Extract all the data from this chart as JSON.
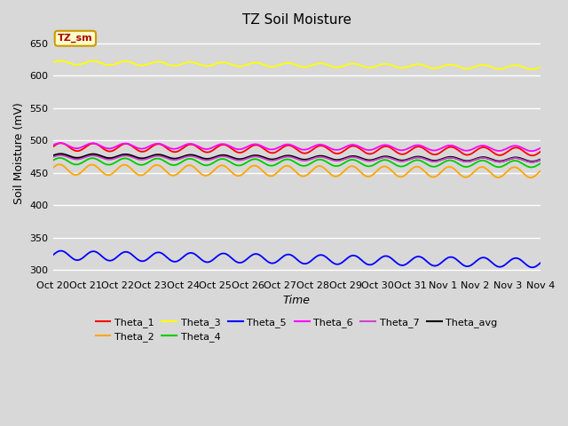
{
  "title": "TZ Soil Moisture",
  "xlabel": "Time",
  "ylabel": "Soil Moisture (mV)",
  "background_color": "#d8d8d8",
  "plot_bg_color": "#d8d8d8",
  "ylim": [
    290,
    670
  ],
  "yticks": [
    300,
    350,
    400,
    450,
    500,
    550,
    600,
    650
  ],
  "num_points": 1120,
  "num_days": 15,
  "series": {
    "Theta_1": {
      "color": "#ff0000",
      "base": 490,
      "amplitude": 6,
      "trend": -0.5,
      "phase": 0.0
    },
    "Theta_2": {
      "color": "#ffa500",
      "base": 455,
      "amplitude": 8,
      "trend": -0.3,
      "phase": 0.3
    },
    "Theta_3": {
      "color": "#ffff00",
      "base": 620,
      "amplitude": 3,
      "trend": -0.5,
      "phase": 0.1
    },
    "Theta_4": {
      "color": "#00cc00",
      "base": 468,
      "amplitude": 5,
      "trend": -0.3,
      "phase": 0.2
    },
    "Theta_5": {
      "color": "#0000ff",
      "base": 323,
      "amplitude": 7,
      "trend": -0.8,
      "phase": 0.0
    },
    "Theta_6": {
      "color": "#ff00ff",
      "base": 492,
      "amplitude": 4,
      "trend": -0.3,
      "phase": 0.15
    },
    "Theta_7": {
      "color": "#cc44cc",
      "base": 474,
      "amplitude": 3,
      "trend": -0.3,
      "phase": 0.1
    },
    "Theta_avg": {
      "color": "#000000",
      "base": 476,
      "amplitude": 3,
      "trend": -0.4,
      "phase": 0.05
    }
  },
  "xtick_labels": [
    "Oct 20",
    "Oct 21",
    "Oct 22",
    "Oct 23",
    "Oct 24",
    "Oct 25",
    "Oct 26",
    "Oct 27",
    "Oct 28",
    "Oct 29",
    "Oct 30",
    "Oct 31",
    "Nov 1",
    "Nov 2",
    "Nov 3",
    "Nov 4"
  ],
  "legend_box_color": "#ffffcc",
  "legend_box_edge": "#cc9900",
  "legend_text": "TZ_sm",
  "legend_text_color": "#aa0000",
  "legend_order_row1": [
    "Theta_1",
    "Theta_2",
    "Theta_3",
    "Theta_4",
    "Theta_5",
    "Theta_6"
  ],
  "legend_order_row2": [
    "Theta_7",
    "Theta_avg"
  ]
}
